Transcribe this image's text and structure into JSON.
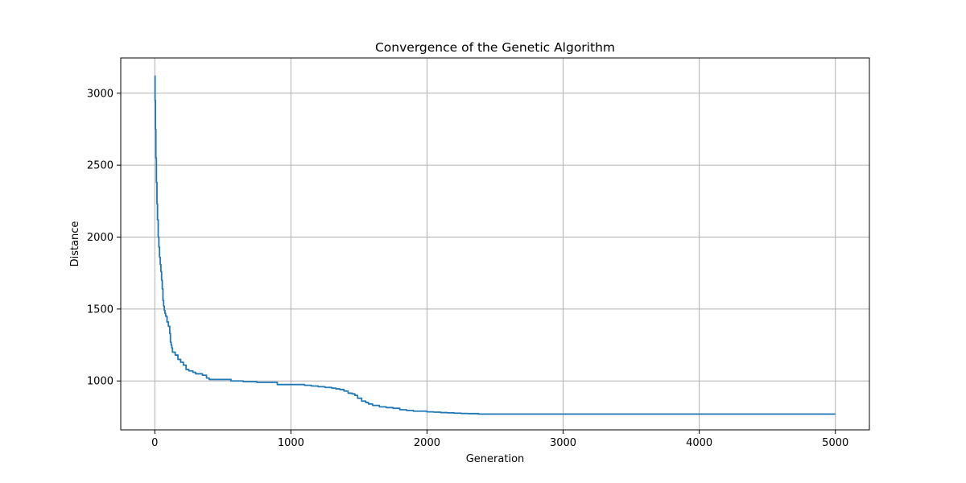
{
  "chart_data": {
    "type": "line",
    "title": "Convergence of the Genetic Algorithm",
    "xlabel": "Generation",
    "ylabel": "Distance",
    "xlim": [
      -250,
      5250
    ],
    "ylim": [
      660,
      3245
    ],
    "x_ticks": [
      0,
      1000,
      2000,
      3000,
      4000,
      5000
    ],
    "y_ticks": [
      1000,
      1500,
      2000,
      2500,
      3000
    ],
    "grid": true,
    "line_color": "#1f77b4",
    "series": [
      {
        "x": [
          0,
          2,
          5,
          8,
          12,
          16,
          20,
          25,
          30,
          35,
          40,
          45,
          50,
          55,
          60,
          65,
          70,
          75,
          80,
          90,
          100,
          110,
          115,
          120,
          125,
          130,
          150,
          170,
          190,
          210,
          230,
          250,
          280,
          300,
          330,
          350,
          380,
          400,
          450,
          500,
          560,
          600,
          650,
          700,
          750,
          800,
          850,
          900,
          1000,
          1050,
          1100,
          1150,
          1200,
          1250,
          1290,
          1300,
          1330,
          1360,
          1390,
          1420,
          1450,
          1470,
          1490,
          1520,
          1550,
          1570,
          1600,
          1650,
          1700,
          1750,
          1800,
          1850,
          1900,
          1950,
          2000,
          2050,
          2100,
          2150,
          2200,
          2250,
          2300,
          2380,
          3000,
          4000,
          5000
        ],
        "y": [
          3120,
          2950,
          2750,
          2550,
          2380,
          2230,
          2120,
          2000,
          1930,
          1860,
          1810,
          1760,
          1700,
          1640,
          1560,
          1520,
          1490,
          1470,
          1450,
          1410,
          1380,
          1330,
          1270,
          1250,
          1230,
          1200,
          1180,
          1150,
          1130,
          1110,
          1080,
          1070,
          1060,
          1050,
          1050,
          1040,
          1020,
          1010,
          1010,
          1010,
          1000,
          1000,
          995,
          995,
          990,
          990,
          990,
          975,
          975,
          975,
          970,
          965,
          960,
          955,
          955,
          950,
          945,
          940,
          930,
          915,
          910,
          900,
          880,
          860,
          850,
          840,
          830,
          820,
          815,
          810,
          800,
          795,
          790,
          790,
          785,
          783,
          780,
          778,
          776,
          774,
          773,
          770,
          770,
          770,
          770
        ]
      }
    ]
  }
}
